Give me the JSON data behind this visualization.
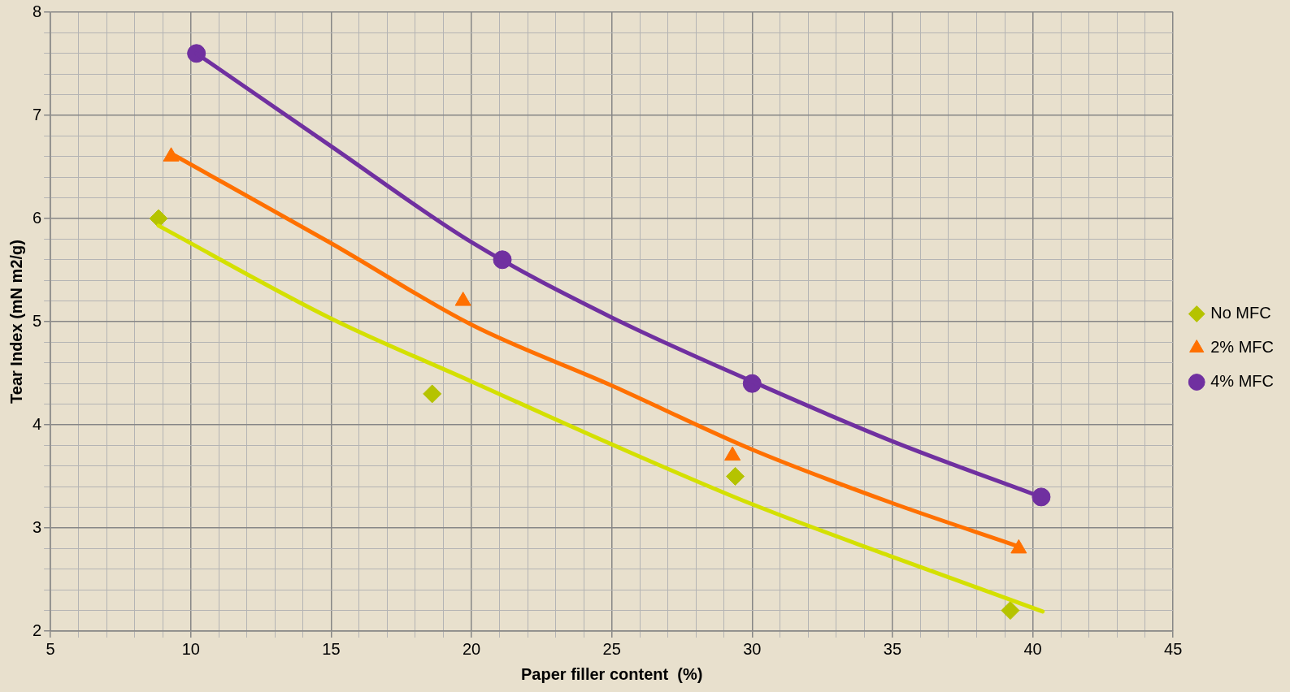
{
  "chart_data": {
    "type": "scatter",
    "xlabel": "Paper filler content  (%)",
    "ylabel": "Tear Index (mN m2/g)",
    "xlim": [
      5,
      45
    ],
    "ylim": [
      2,
      8
    ],
    "xticks": [
      5,
      {
        "value": 6,
        "label": null
      },
      {
        "value": 7,
        "label": null
      },
      {
        "value": 8,
        "label": null
      },
      {
        "value": 9,
        "label": null
      },
      10,
      {
        "value": 11,
        "label": null
      },
      {
        "value": 12,
        "label": null
      },
      {
        "value": 13,
        "label": null
      },
      {
        "value": 14,
        "label": null
      },
      15,
      {
        "value": 16,
        "label": null
      },
      {
        "value": 17,
        "label": null
      },
      {
        "value": 18,
        "label": null
      },
      {
        "value": 19,
        "label": null
      },
      20,
      {
        "value": 21,
        "label": null
      },
      {
        "value": 22,
        "label": null
      },
      {
        "value": 23,
        "label": null
      },
      {
        "value": 24,
        "label": null
      },
      25,
      {
        "value": 26,
        "label": null
      },
      {
        "value": 27,
        "label": null
      },
      {
        "value": 28,
        "label": null
      },
      {
        "value": 29,
        "label": null
      },
      30,
      {
        "value": 31,
        "label": null
      },
      {
        "value": 32,
        "label": null
      },
      {
        "value": 33,
        "label": null
      },
      {
        "value": 34,
        "label": null
      },
      35,
      {
        "value": 36,
        "label": null
      },
      {
        "value": 37,
        "label": null
      },
      {
        "value": 38,
        "label": null
      },
      {
        "value": 39,
        "label": null
      },
      40,
      {
        "value": 41,
        "label": null
      },
      {
        "value": 42,
        "label": null
      },
      {
        "value": 43,
        "label": null
      },
      {
        "value": 44,
        "label": null
      },
      45
    ],
    "yticks": [
      2,
      {
        "value": 2.2,
        "label": null
      },
      {
        "value": 2.4,
        "label": null
      },
      {
        "value": 2.6,
        "label": null
      },
      {
        "value": 2.8,
        "label": null
      },
      3,
      {
        "value": 3.2,
        "label": null
      },
      {
        "value": 3.4,
        "label": null
      },
      {
        "value": 3.6,
        "label": null
      },
      {
        "value": 3.8,
        "label": null
      },
      4,
      {
        "value": 4.2,
        "label": null
      },
      {
        "value": 4.4,
        "label": null
      },
      {
        "value": 4.6,
        "label": null
      },
      {
        "value": 4.8,
        "label": null
      },
      5,
      {
        "value": 5.2,
        "label": null
      },
      {
        "value": 5.4,
        "label": null
      },
      {
        "value": 5.6,
        "label": null
      },
      {
        "value": 5.8,
        "label": null
      },
      6,
      {
        "value": 6.2,
        "label": null
      },
      {
        "value": 6.4,
        "label": null
      },
      {
        "value": 6.6,
        "label": null
      },
      {
        "value": 6.8,
        "label": null
      },
      7,
      {
        "value": 7.2,
        "label": null
      },
      {
        "value": 7.4,
        "label": null
      },
      {
        "value": 7.6,
        "label": null
      },
      {
        "value": 7.8,
        "label": null
      },
      8
    ],
    "grid": true,
    "legend": "right",
    "series": [
      {
        "type": "line",
        "color": "#d4e000",
        "marker": "none",
        "x": [
          8.85,
          15,
          20,
          25,
          30,
          35,
          40.35
        ],
        "values": [
          5.93,
          5.03,
          4.42,
          3.81,
          3.23,
          2.72,
          2.19
        ]
      },
      {
        "type": "line",
        "color": "#ff7000",
        "marker": "none",
        "x": [
          9.3,
          15,
          20,
          25,
          30,
          35,
          39.5
        ],
        "values": [
          6.63,
          5.76,
          4.97,
          4.38,
          3.76,
          3.24,
          2.82
        ]
      },
      {
        "type": "line",
        "color": "#7030a0",
        "marker": "none",
        "x": [
          10.2,
          15,
          20,
          25,
          30,
          35,
          40.3
        ],
        "values": [
          7.6,
          6.7,
          5.77,
          5.04,
          4.42,
          3.84,
          3.3
        ]
      },
      {
        "name": "No MFC",
        "color": "#b5c300",
        "marker": "diamond",
        "x": [
          8.85,
          18.6,
          29.4,
          39.2
        ],
        "values": [
          6.0,
          4.3,
          3.5,
          2.2
        ]
      },
      {
        "name": "2% MFC",
        "color": "#ff7000",
        "marker": "triangle",
        "x": [
          9.3,
          19.7,
          29.3,
          39.5
        ],
        "values": [
          6.6,
          5.2,
          3.7,
          2.8
        ]
      },
      {
        "name": "4% MFC",
        "color": "#7030a0",
        "marker": "circle",
        "x": [
          10.2,
          21.1,
          30.0,
          40.3
        ],
        "values": [
          7.6,
          5.6,
          4.4,
          3.3
        ]
      }
    ]
  }
}
